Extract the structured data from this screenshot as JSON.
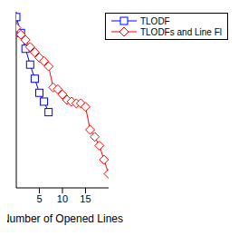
{
  "chart_data": {
    "type": "line",
    "x_label": "Number of Opened Lines",
    "x": [
      0,
      1,
      2,
      3,
      4,
      5,
      6,
      7,
      8,
      9,
      10,
      11,
      12,
      13,
      14,
      15,
      16,
      17,
      18,
      19,
      20
    ],
    "series": [
      {
        "name": "TLODF",
        "color": "#0000ff",
        "marker": "square",
        "values": [
          97,
          88,
          79,
          70,
          62,
          54,
          49,
          43,
          null,
          null,
          null,
          null,
          null,
          null,
          null,
          null,
          null,
          null,
          null,
          null,
          null
        ]
      },
      {
        "name": "TLODFs and Line Fl",
        "color": "#ff0000",
        "marker": "diamond",
        "values": [
          91,
          87,
          84,
          80,
          77,
          74,
          72,
          69,
          57,
          56,
          53,
          50,
          49,
          48,
          48,
          46,
          33,
          29,
          24,
          16,
          8
        ]
      }
    ],
    "xlim": [
      0,
      20
    ],
    "xticks": [
      5,
      10,
      15
    ],
    "ylim": [
      0,
      100
    ],
    "tick_labels": "x",
    "legend": "top-right"
  }
}
